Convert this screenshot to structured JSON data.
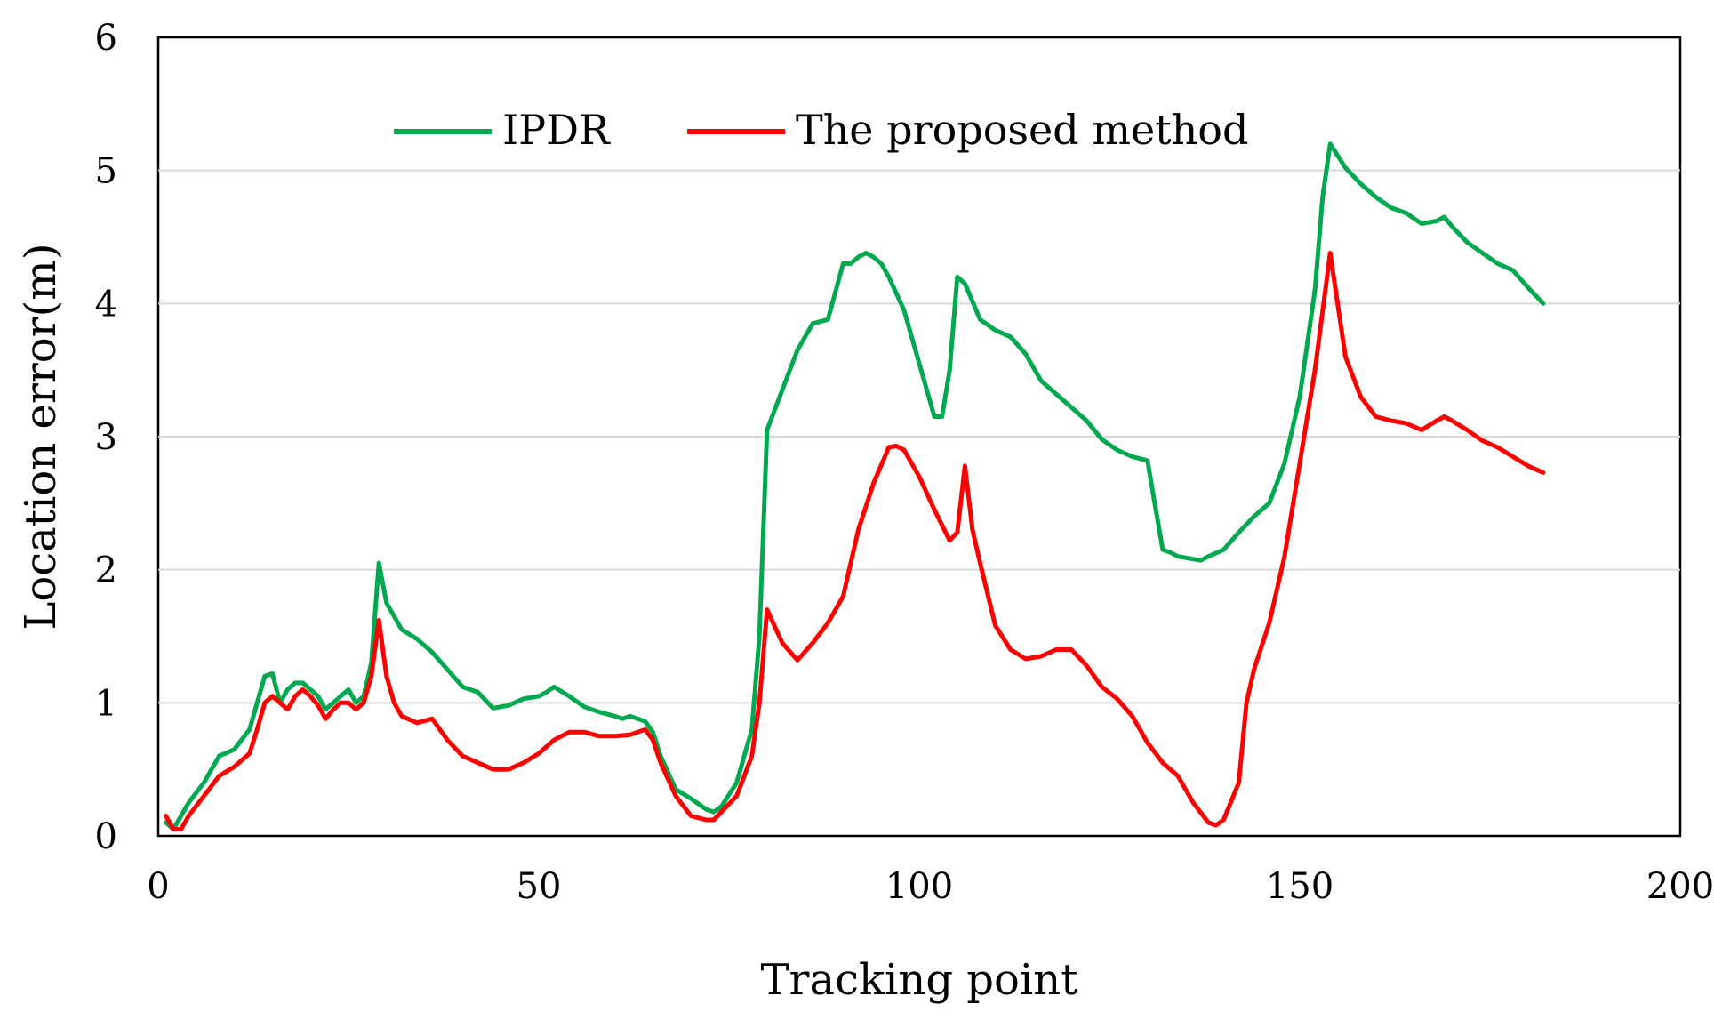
{
  "chart_data": {
    "type": "line",
    "title": "",
    "xlabel": "Tracking point",
    "ylabel": "Location error(m)",
    "xlim": [
      0,
      200
    ],
    "ylim": [
      0,
      6
    ],
    "xticks": [
      0,
      50,
      100,
      150,
      200
    ],
    "yticks": [
      0,
      1,
      2,
      3,
      4,
      5,
      6
    ],
    "xtick_labels": [
      "0",
      "50",
      "100",
      "150",
      "200"
    ],
    "ytick_labels": [
      "0",
      "1",
      "2",
      "3",
      "4",
      "5",
      "6"
    ],
    "grid": "horizontal",
    "legend": {
      "position": "top-center"
    },
    "series": [
      {
        "name": "IPDR",
        "color": "#00a84f",
        "x": [
          1,
          2,
          3,
          4,
          6,
          8,
          10,
          12,
          13,
          14,
          15,
          16,
          17,
          18,
          19,
          20,
          21,
          22,
          23,
          24,
          25,
          26,
          27,
          28,
          29,
          30,
          31,
          32,
          34,
          36,
          38,
          40,
          42,
          44,
          46,
          48,
          50,
          51,
          52,
          54,
          56,
          58,
          60,
          61,
          62,
          64,
          65,
          66,
          68,
          70,
          72,
          73,
          74,
          76,
          78,
          79,
          80,
          82,
          84,
          86,
          88,
          90,
          91,
          92,
          93,
          94,
          95,
          96,
          98,
          100,
          102,
          103,
          104,
          105,
          106,
          108,
          110,
          112,
          114,
          116,
          118,
          120,
          122,
          124,
          126,
          128,
          130,
          131,
          132,
          133,
          134,
          136,
          137,
          138,
          140,
          142,
          144,
          146,
          148,
          150,
          152,
          153,
          154,
          156,
          158,
          160,
          162,
          164,
          166,
          168,
          169,
          170,
          172,
          174,
          176,
          178,
          180,
          182
        ],
        "values": [
          0.1,
          0.05,
          0.15,
          0.25,
          0.4,
          0.6,
          0.65,
          0.8,
          1.0,
          1.2,
          1.22,
          1.0,
          1.1,
          1.15,
          1.15,
          1.1,
          1.05,
          0.95,
          1.0,
          1.05,
          1.1,
          1.0,
          1.05,
          1.3,
          2.05,
          1.75,
          1.65,
          1.55,
          1.48,
          1.38,
          1.25,
          1.12,
          1.08,
          0.96,
          0.98,
          1.03,
          1.05,
          1.08,
          1.12,
          1.05,
          0.97,
          0.93,
          0.9,
          0.88,
          0.9,
          0.86,
          0.78,
          0.6,
          0.35,
          0.28,
          0.2,
          0.18,
          0.22,
          0.4,
          0.8,
          1.5,
          3.05,
          3.35,
          3.65,
          3.85,
          3.88,
          4.3,
          4.3,
          4.35,
          4.38,
          4.35,
          4.3,
          4.2,
          3.95,
          3.55,
          3.15,
          3.15,
          3.5,
          4.2,
          4.15,
          3.88,
          3.8,
          3.75,
          3.62,
          3.42,
          3.32,
          3.22,
          3.12,
          2.98,
          2.9,
          2.85,
          2.82,
          2.48,
          2.15,
          2.13,
          2.1,
          2.08,
          2.07,
          2.1,
          2.15,
          2.28,
          2.4,
          2.5,
          2.8,
          3.3,
          4.1,
          4.8,
          5.2,
          5.02,
          4.9,
          4.8,
          4.72,
          4.68,
          4.6,
          4.62,
          4.65,
          4.58,
          4.46,
          4.38,
          4.3,
          4.25,
          4.12,
          4.0
        ]
      },
      {
        "name": "The proposed method",
        "color": "#ff0000",
        "x": [
          1,
          2,
          3,
          4,
          6,
          8,
          10,
          12,
          13,
          14,
          15,
          16,
          17,
          18,
          19,
          20,
          21,
          22,
          23,
          24,
          25,
          26,
          27,
          28,
          29,
          30,
          31,
          32,
          34,
          36,
          38,
          40,
          42,
          44,
          46,
          48,
          50,
          52,
          54,
          56,
          58,
          60,
          62,
          64,
          65,
          66,
          68,
          70,
          72,
          73,
          74,
          76,
          78,
          79,
          80,
          82,
          84,
          86,
          88,
          90,
          92,
          94,
          96,
          97,
          98,
          100,
          102,
          104,
          105,
          106,
          107,
          108,
          110,
          112,
          114,
          116,
          118,
          120,
          122,
          124,
          126,
          128,
          130,
          132,
          134,
          136,
          138,
          139,
          140,
          142,
          143,
          144,
          146,
          148,
          150,
          152,
          154,
          156,
          158,
          160,
          162,
          164,
          166,
          168,
          169,
          170,
          172,
          174,
          176,
          178,
          180,
          182
        ],
        "values": [
          0.15,
          0.05,
          0.05,
          0.15,
          0.3,
          0.45,
          0.52,
          0.62,
          0.8,
          1.0,
          1.05,
          1.0,
          0.95,
          1.05,
          1.1,
          1.05,
          0.98,
          0.88,
          0.95,
          1.0,
          1.0,
          0.95,
          1.0,
          1.2,
          1.62,
          1.2,
          1.0,
          0.9,
          0.85,
          0.88,
          0.72,
          0.6,
          0.55,
          0.5,
          0.5,
          0.55,
          0.62,
          0.72,
          0.78,
          0.78,
          0.75,
          0.75,
          0.76,
          0.8,
          0.72,
          0.55,
          0.3,
          0.15,
          0.12,
          0.12,
          0.18,
          0.3,
          0.6,
          1.0,
          1.7,
          1.45,
          1.32,
          1.45,
          1.6,
          1.8,
          2.3,
          2.65,
          2.92,
          2.93,
          2.9,
          2.7,
          2.45,
          2.22,
          2.28,
          2.78,
          2.3,
          2.05,
          1.58,
          1.4,
          1.33,
          1.35,
          1.4,
          1.4,
          1.28,
          1.12,
          1.03,
          0.9,
          0.7,
          0.55,
          0.45,
          0.25,
          0.1,
          0.08,
          0.12,
          0.4,
          1.0,
          1.25,
          1.6,
          2.1,
          2.8,
          3.5,
          4.38,
          3.6,
          3.3,
          3.15,
          3.12,
          3.1,
          3.05,
          3.12,
          3.15,
          3.12,
          3.05,
          2.97,
          2.92,
          2.85,
          2.78,
          2.73
        ]
      }
    ]
  }
}
